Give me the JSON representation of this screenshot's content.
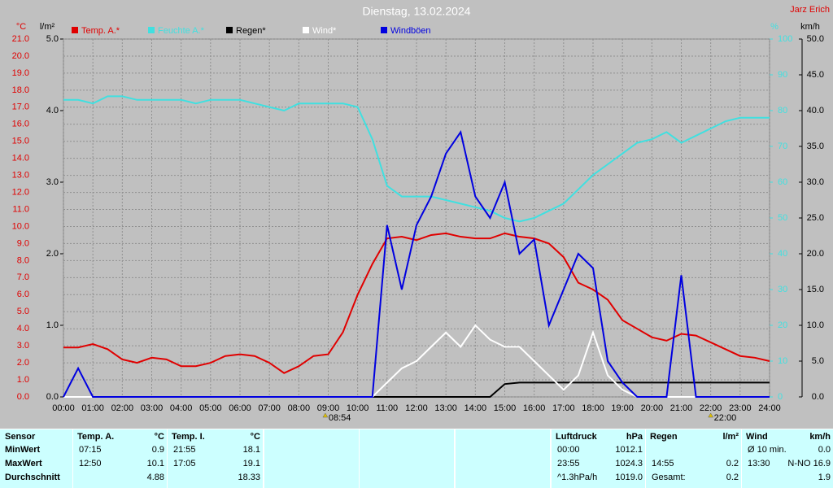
{
  "chart_data": {
    "type": "line",
    "title": "Dienstag, 13.02.2024",
    "author": "Jarz Erich",
    "axis_units": {
      "y": "°C",
      "y3": "l/m²",
      "y4": "%",
      "y2": "km/h"
    },
    "x": [
      0,
      0.5,
      1,
      1.5,
      2,
      2.5,
      3,
      3.5,
      4,
      4.5,
      5,
      5.5,
      6,
      6.5,
      7,
      7.5,
      8,
      8.5,
      9,
      9.5,
      10,
      10.5,
      11,
      11.5,
      12,
      12.5,
      13,
      13.5,
      14,
      14.5,
      15,
      15.5,
      16,
      16.5,
      17,
      17.5,
      18,
      18.5,
      19,
      19.5,
      20,
      20.5,
      21,
      21.5,
      22,
      22.5,
      23,
      23.5,
      24
    ],
    "xlim": [
      0,
      24
    ],
    "xticks": [
      {
        "value": 0,
        "label": "00:00"
      },
      {
        "value": 1,
        "label": "01:00"
      },
      {
        "value": 2,
        "label": "02:00"
      },
      {
        "value": 3,
        "label": "03:00"
      },
      {
        "value": 4,
        "label": "04:00"
      },
      {
        "value": 5,
        "label": "05:00"
      },
      {
        "value": 6,
        "label": "06:00"
      },
      {
        "value": 7,
        "label": "07:00"
      },
      {
        "value": 8,
        "label": "08:00"
      },
      {
        "value": 9,
        "label": "09:00"
      },
      {
        "value": 10,
        "label": "10:00"
      },
      {
        "value": 11,
        "label": "11:00"
      },
      {
        "value": 12,
        "label": "12:00"
      },
      {
        "value": 13,
        "label": "13:00"
      },
      {
        "value": 14,
        "label": "14:00"
      },
      {
        "value": 15,
        "label": "15:00"
      },
      {
        "value": 16,
        "label": "16:00"
      },
      {
        "value": 17,
        "label": "17:00"
      },
      {
        "value": 18,
        "label": "18:00"
      },
      {
        "value": 19,
        "label": "19:00"
      },
      {
        "value": 20,
        "label": "20:00"
      },
      {
        "value": 21,
        "label": "21:00"
      },
      {
        "value": 22,
        "label": "22:00"
      },
      {
        "value": 23,
        "label": "23:00"
      },
      {
        "value": 24,
        "label": "24:00"
      }
    ],
    "ylim": [
      0,
      21
    ],
    "yticks": [
      {
        "value": 0,
        "label": "0.0"
      },
      {
        "value": 1,
        "label": "1.0"
      },
      {
        "value": 2,
        "label": "2.0"
      },
      {
        "value": 3,
        "label": "3.0"
      },
      {
        "value": 4,
        "label": "4.0"
      },
      {
        "value": 5,
        "label": "5.0"
      },
      {
        "value": 6,
        "label": "6.0"
      },
      {
        "value": 7,
        "label": "7.0"
      },
      {
        "value": 8,
        "label": "8.0"
      },
      {
        "value": 9,
        "label": "9.0"
      },
      {
        "value": 10,
        "label": "10.0"
      },
      {
        "value": 11,
        "label": "11.0"
      },
      {
        "value": 12,
        "label": "12.0"
      },
      {
        "value": 13,
        "label": "13.0"
      },
      {
        "value": 14,
        "label": "14.0"
      },
      {
        "value": 15,
        "label": "15.0"
      },
      {
        "value": 16,
        "label": "16.0"
      },
      {
        "value": 17,
        "label": "17.0"
      },
      {
        "value": 18,
        "label": "18.0"
      },
      {
        "value": 19,
        "label": "19.0"
      },
      {
        "value": 20,
        "label": "20.0"
      },
      {
        "value": 21,
        "label": "21.0"
      }
    ],
    "y3lim": [
      0,
      5
    ],
    "y3ticks": [
      {
        "value": 0,
        "label": "0.0"
      },
      {
        "value": 1,
        "label": "1.0"
      },
      {
        "value": 2,
        "label": "2.0"
      },
      {
        "value": 3,
        "label": "3.0"
      },
      {
        "value": 4,
        "label": "4.0"
      },
      {
        "value": 5,
        "label": "5.0"
      }
    ],
    "y4lim": [
      0,
      100
    ],
    "y4ticks": [
      0,
      10,
      20,
      30,
      40,
      50,
      60,
      70,
      80,
      90,
      100
    ],
    "y2lim": [
      0,
      50
    ],
    "y2ticks": [
      {
        "value": 0,
        "label": "0.0"
      },
      {
        "value": 5,
        "label": "5.0"
      },
      {
        "value": 10,
        "label": "10.0"
      },
      {
        "value": 15,
        "label": "15.0"
      },
      {
        "value": 20,
        "label": "20.0"
      },
      {
        "value": 25,
        "label": "25.0"
      },
      {
        "value": 30,
        "label": "30.0"
      },
      {
        "value": 35,
        "label": "35.0"
      },
      {
        "value": 40,
        "label": "40.0"
      },
      {
        "value": 45,
        "label": "45.0"
      },
      {
        "value": 50,
        "label": "50.0"
      }
    ],
    "grid": true,
    "annotations": [
      {
        "label": "08:54"
      },
      {
        "label": "22:00"
      }
    ],
    "series": [
      {
        "name": "Temp. A.*",
        "color": "#e00000",
        "axis": "y",
        "values": [
          2.9,
          2.9,
          3.1,
          2.8,
          2.2,
          2.0,
          2.3,
          2.2,
          1.8,
          1.8,
          2.0,
          2.4,
          2.5,
          2.4,
          2.0,
          1.4,
          1.8,
          2.4,
          2.5,
          3.8,
          6.0,
          7.8,
          9.3,
          9.4,
          9.2,
          9.5,
          9.6,
          9.4,
          9.3,
          9.3,
          9.6,
          9.4,
          9.3,
          9.0,
          8.2,
          6.7,
          6.3,
          5.7,
          4.5,
          4.0,
          3.5,
          3.3,
          3.7,
          3.6,
          3.2,
          2.8,
          2.4,
          2.3,
          2.1
        ]
      },
      {
        "name": "Feuchte A.*",
        "color": "#40e0e0",
        "axis": "y4",
        "values": [
          83,
          83,
          82,
          84,
          84,
          83,
          83,
          83,
          83,
          82,
          83,
          83,
          83,
          82,
          81,
          80,
          82,
          82,
          82,
          82,
          81,
          72,
          59,
          56,
          56,
          56,
          55,
          54,
          53,
          52,
          50,
          49,
          50,
          52,
          54,
          58,
          62,
          65,
          68,
          71,
          72,
          74,
          71,
          73,
          75,
          77,
          78,
          78,
          78
        ]
      },
      {
        "name": "Regen*",
        "color": "#000000",
        "axis": "y3",
        "values": [
          0,
          0,
          0,
          0,
          0,
          0,
          0,
          0,
          0,
          0,
          0,
          0,
          0,
          0,
          0,
          0,
          0,
          0,
          0,
          0,
          0,
          0,
          0,
          0,
          0,
          0,
          0,
          0,
          0,
          0,
          0.18,
          0.2,
          0.2,
          0.2,
          0.2,
          0.2,
          0.2,
          0.2,
          0.2,
          0.2,
          0.2,
          0.2,
          0.2,
          0.2,
          0.2,
          0.2,
          0.2,
          0.2,
          0.2
        ]
      },
      {
        "name": "Wind*",
        "color": "#ffffff",
        "axis": "y2",
        "values": [
          0,
          0,
          0,
          0,
          0,
          0,
          0,
          0,
          0,
          0,
          0,
          0,
          0,
          0,
          0,
          0,
          0,
          0,
          0,
          0,
          0,
          0,
          2,
          4,
          5,
          7,
          9,
          7,
          10,
          8,
          7,
          7,
          5,
          3,
          1,
          3,
          9,
          3,
          1,
          0,
          0,
          0,
          0,
          0,
          0,
          0,
          0,
          0,
          0
        ]
      },
      {
        "name": "Windböen",
        "color": "#0000e0",
        "axis": "y2",
        "values": [
          0,
          4,
          0,
          0,
          0,
          0,
          0,
          0,
          0,
          0,
          0,
          0,
          0,
          0,
          0,
          0,
          0,
          0,
          0,
          0,
          0,
          0,
          24,
          15,
          24,
          28,
          34,
          37,
          28,
          25,
          30,
          20,
          22,
          10,
          15,
          20,
          18,
          5,
          2,
          0,
          0,
          0,
          17,
          0,
          0,
          0,
          0,
          0,
          0
        ]
      }
    ]
  },
  "table": {
    "row_labels": [
      "Sensor",
      "MinWert",
      "MaxWert",
      "Durchschnitt"
    ],
    "sections": [
      {
        "header": "Temp. A.",
        "unit": "°C",
        "min": {
          "time": "07:15",
          "value": "0.9"
        },
        "max": {
          "time": "12:50",
          "value": "10.1"
        },
        "avg": {
          "value": "4.88"
        }
      },
      {
        "header": "Temp. I.",
        "unit": "°C",
        "min": {
          "time": "21:55",
          "value": "18.1"
        },
        "max": {
          "time": "17:05",
          "value": "19.1"
        },
        "avg": {
          "value": "18.33"
        }
      },
      {
        "header": "Luftdruck",
        "unit": "hPa",
        "min": {
          "time": "00:00",
          "value": "1012.1"
        },
        "max": {
          "time": "23:55",
          "value": "1024.3"
        },
        "avg": {
          "time": "^1.3hPa/h",
          "value": "1019.0"
        }
      },
      {
        "header": "Regen",
        "unit": "l/m²",
        "max": {
          "time": "14:55",
          "value": "0.2"
        },
        "avg": {
          "time": "Gesamt:",
          "value": "0.2"
        }
      },
      {
        "header": "Wind",
        "unit": "km/h",
        "min": {
          "time": "Ø 10 min.",
          "value": "0.0"
        },
        "max": {
          "time": "13:30",
          "value": "N-NO 16.9"
        },
        "avg": {
          "value": "1.9"
        }
      }
    ]
  }
}
